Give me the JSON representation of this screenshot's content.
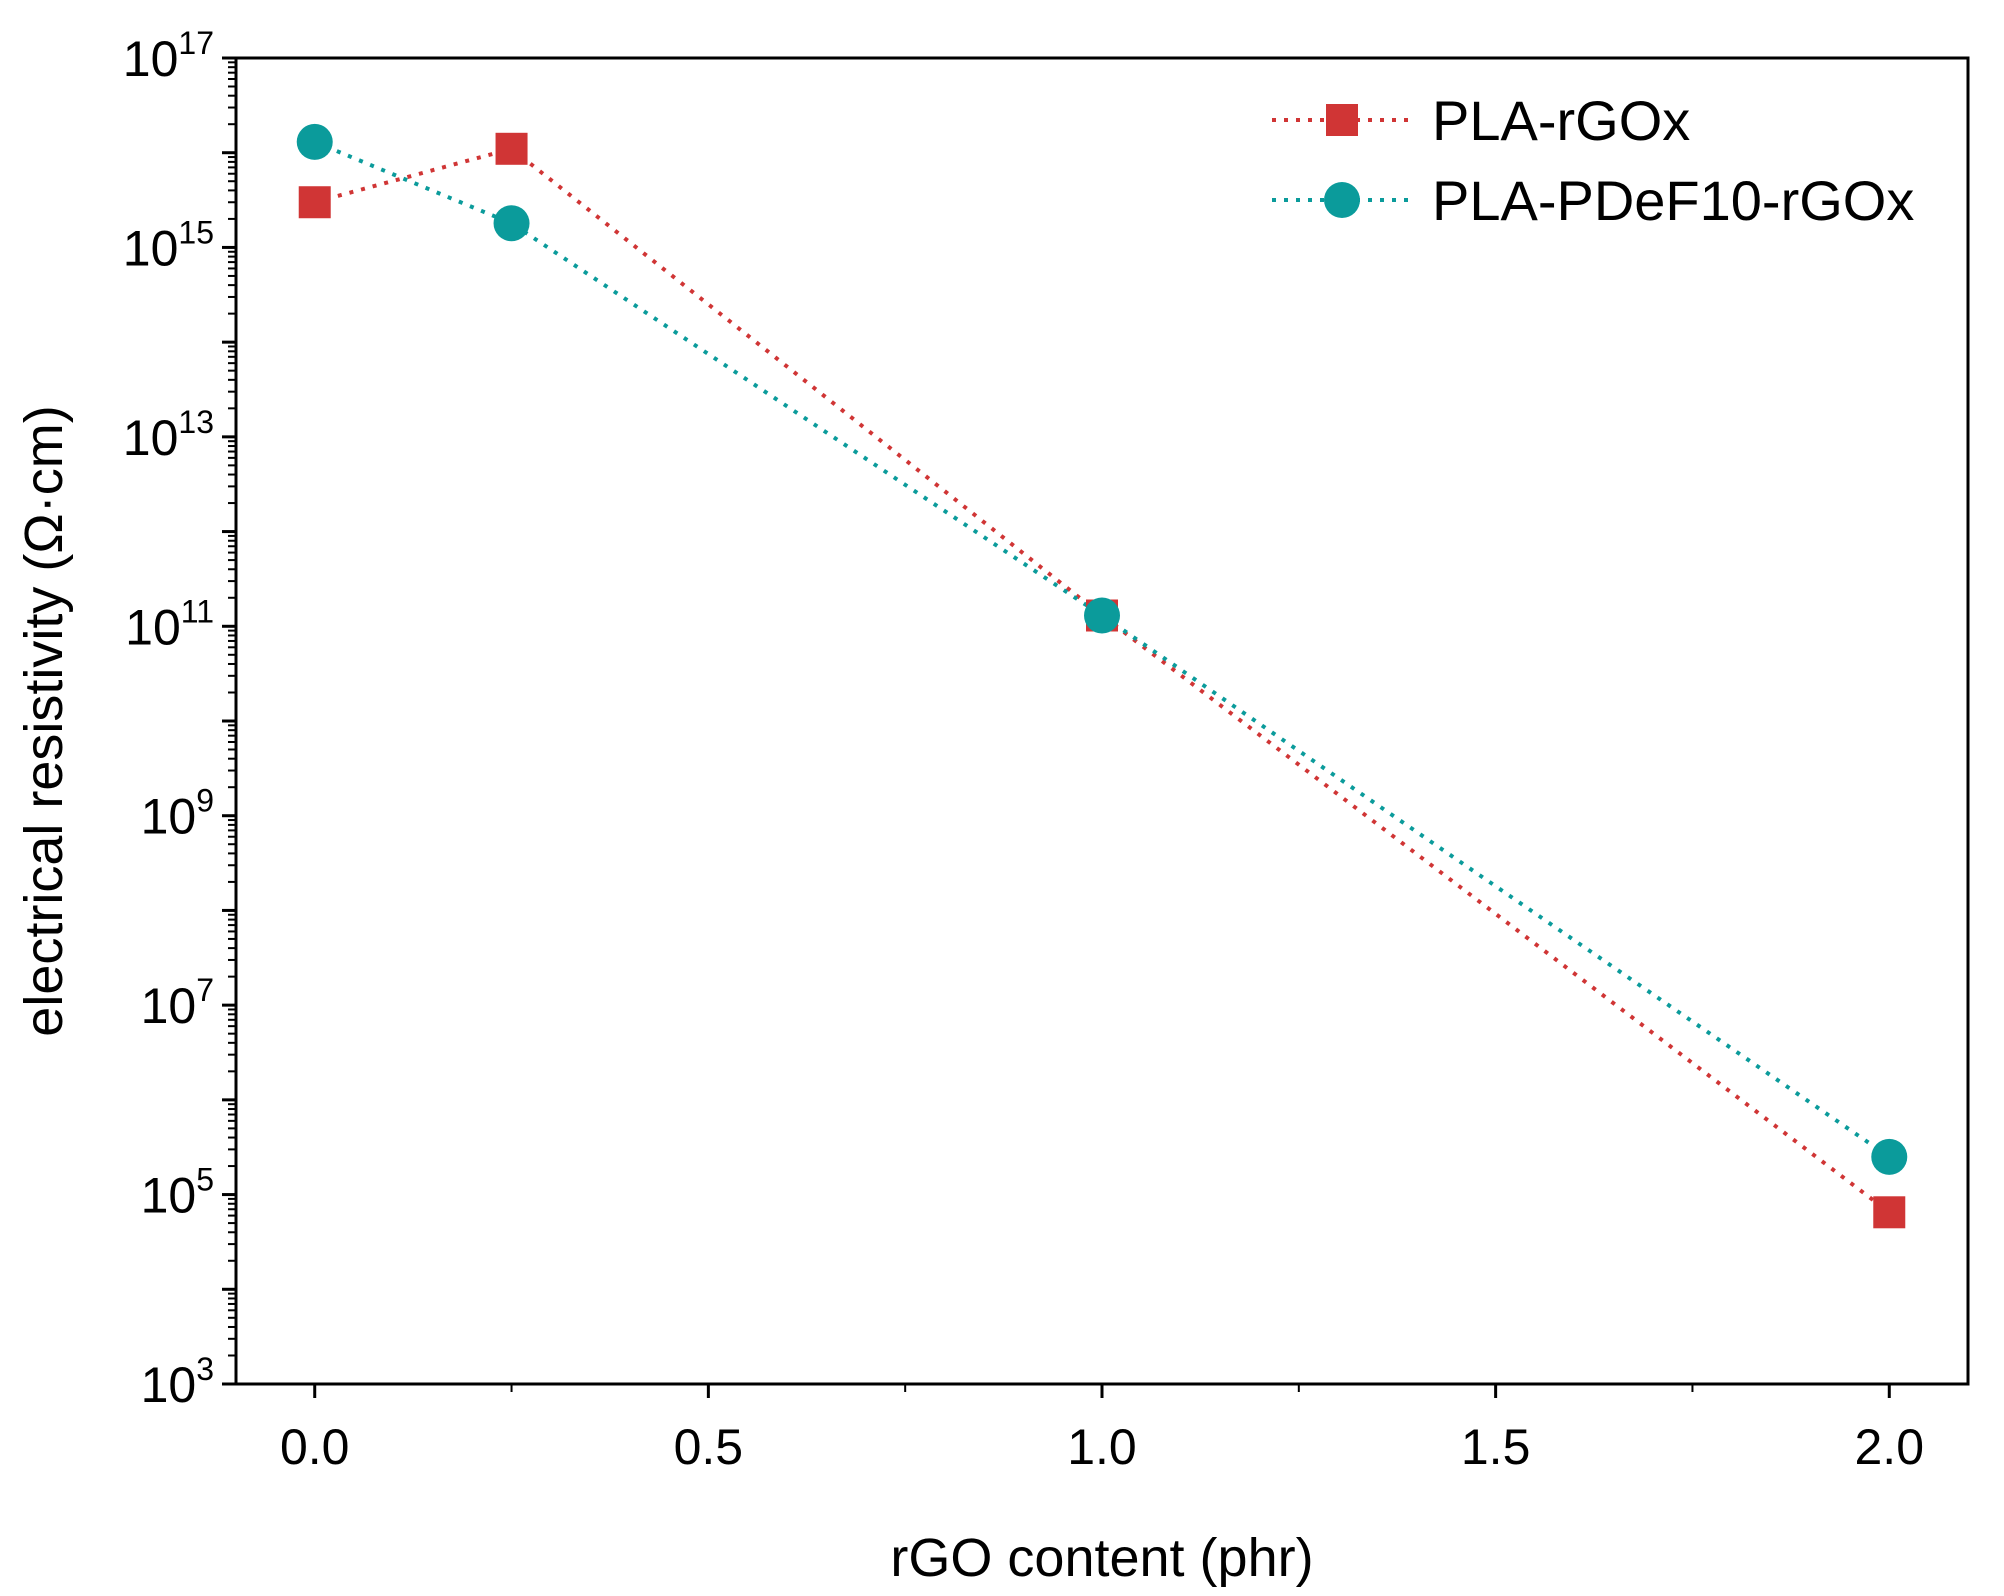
{
  "chart_data": {
    "type": "line",
    "title": "",
    "xlabel": "rGO content (phr)",
    "ylabel": "electrical resistivity (Ω·cm)",
    "xscale": "linear",
    "yscale": "log",
    "xlim": [
      -0.1,
      2.1
    ],
    "ylim_exponents": [
      3,
      17
    ],
    "x_ticks": [
      {
        "value": 0.0,
        "label": "0.0"
      },
      {
        "value": 0.5,
        "label": "0.5"
      },
      {
        "value": 1.0,
        "label": "1.0"
      },
      {
        "value": 1.5,
        "label": "1.5"
      },
      {
        "value": 2.0,
        "label": "2.0"
      }
    ],
    "x_minor_ticks": [
      0.25,
      0.75,
      1.25,
      1.75
    ],
    "y_ticks": [
      {
        "exponent": 3,
        "base": "10",
        "sup": "3"
      },
      {
        "exponent": 5,
        "base": "10",
        "sup": "5"
      },
      {
        "exponent": 7,
        "base": "10",
        "sup": "7"
      },
      {
        "exponent": 9,
        "base": "10",
        "sup": "9"
      },
      {
        "exponent": 11,
        "base": "10",
        "sup": "11"
      },
      {
        "exponent": 13,
        "base": "10",
        "sup": "13"
      },
      {
        "exponent": 15,
        "base": "10",
        "sup": "15"
      },
      {
        "exponent": 17,
        "base": "10",
        "sup": "17"
      }
    ],
    "legend_position": "top-right",
    "series": [
      {
        "name": "PLA-rGOx",
        "color": "#d03535",
        "marker": "square",
        "line_style": "dotted",
        "x": [
          0.0,
          0.25,
          1.0,
          2.0
        ],
        "y": [
          3000000000000000.0,
          1.1e+16,
          130000000000.0,
          65000.0
        ]
      },
      {
        "name": "PLA-PDeF10-rGOx",
        "color": "#0b9b9b",
        "marker": "circle",
        "line_style": "dotted",
        "x": [
          0.0,
          0.25,
          1.0,
          2.0
        ],
        "y": [
          1.3e+16,
          1800000000000000.0,
          130000000000.0,
          250000.0
        ]
      }
    ]
  }
}
